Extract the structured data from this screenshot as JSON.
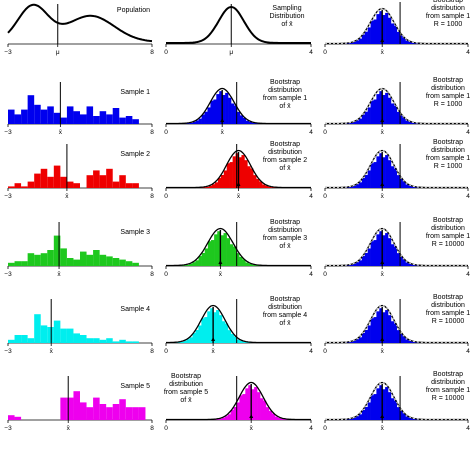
{
  "colors": {
    "sample1": "#0000ee",
    "sample2": "#ee0000",
    "sample3": "#1ec81e",
    "sample4": "#00eeee",
    "sample5": "#ee00ee",
    "bootstrap": "#0000ee",
    "curve": "#000000"
  },
  "chart_data": [
    {
      "type": "line",
      "panel": "population",
      "label": "Population",
      "x_ticks": [
        "−3",
        "μ",
        "8"
      ],
      "xlim": [
        -3,
        8
      ],
      "curve": "bimodal",
      "mean": 0.8
    },
    {
      "type": "line",
      "panel": "sampling",
      "label_lines": [
        "Sampling",
        "Distribution",
        "of x̄"
      ],
      "x_ticks": [
        "0",
        "μ",
        "4"
      ],
      "xlim": [
        0,
        4
      ],
      "mean": 1.8,
      "sd": 0.35
    },
    {
      "type": "area",
      "panel": "bootstrap-col3",
      "row": 0,
      "label_lines": [
        "Bootstrap",
        "distribution",
        "from sample 1",
        "R = 1000"
      ],
      "x_ticks": [
        "0",
        "x̄",
        "4"
      ],
      "xlim": [
        0,
        4
      ],
      "mean": 1.6,
      "sd": 0.33,
      "vline": 2.1
    },
    {
      "type": "bar",
      "panel": "sample",
      "row": 1,
      "label": "Sample 1",
      "color_key": "sample1",
      "x_ticks": [
        "−3",
        "x̄",
        "8"
      ],
      "xlim": [
        -3,
        8
      ],
      "bin_width": 0.5,
      "values": [
        0.45,
        0.3,
        0.45,
        0.9,
        0.6,
        0.45,
        0.55,
        0.35,
        0.2,
        0.55,
        0.4,
        0.3,
        0.55,
        0.25,
        0.4,
        0.3,
        0.5,
        0.2,
        0.25,
        0.15
      ],
      "vline": 1.0
    },
    {
      "type": "area",
      "panel": "bootstrap",
      "row": 1,
      "label_lines": [
        "Bootstrap",
        "distribution",
        "from sample 1",
        "of x̄"
      ],
      "color_key": "sample1",
      "x_ticks": [
        "0",
        "x̄",
        "4"
      ],
      "xlim": [
        0,
        4
      ],
      "mean": 1.55,
      "sd": 0.33,
      "vline": 1.95
    },
    {
      "type": "area",
      "panel": "bootstrap-col3",
      "row": 1,
      "label_lines": [
        "Bootstrap",
        "distribution",
        "from sample 1",
        "R = 1000"
      ],
      "x_ticks": [
        "0",
        "x̄",
        "4"
      ],
      "xlim": [
        0,
        4
      ],
      "mean": 1.6,
      "sd": 0.33,
      "vline": 2.1
    },
    {
      "type": "bar",
      "panel": "sample",
      "row": 2,
      "label": "Sample 2",
      "color_key": "sample2",
      "x_ticks": [
        "−3",
        "x̄",
        "8"
      ],
      "xlim": [
        -3,
        8
      ],
      "bin_width": 0.5,
      "values": [
        0.05,
        0.15,
        0.05,
        0.2,
        0.45,
        0.6,
        0.35,
        0.7,
        0.35,
        0.2,
        0.15,
        0,
        0.4,
        0.55,
        0.4,
        0.6,
        0.2,
        0.4,
        0.15,
        0.15
      ],
      "vline": 1.5
    },
    {
      "type": "area",
      "panel": "bootstrap",
      "row": 2,
      "label_lines": [
        "Bootstrap",
        "distribution",
        "from sample 2",
        "of x̄"
      ],
      "color_key": "sample2",
      "x_ticks": [
        "0",
        "x̄",
        "4"
      ],
      "xlim": [
        0,
        4
      ],
      "mean": 2.0,
      "sd": 0.33,
      "vline": 1.95
    },
    {
      "type": "area",
      "panel": "bootstrap-col3",
      "row": 2,
      "label_lines": [
        "Bootstrap",
        "distribution",
        "from sample 1",
        "R = 1000"
      ],
      "x_ticks": [
        "0",
        "x̄",
        "4"
      ],
      "xlim": [
        0,
        4
      ],
      "mean": 1.6,
      "sd": 0.33,
      "vline": 2.1
    },
    {
      "type": "bar",
      "panel": "sample",
      "row": 3,
      "label": "Sample 3",
      "color_key": "sample3",
      "x_ticks": [
        "−3",
        "x̄",
        "8"
      ],
      "xlim": [
        -3,
        8
      ],
      "bin_width": 0.5,
      "values": [
        0.1,
        0.15,
        0.15,
        0.4,
        0.35,
        0.4,
        0.5,
        0.95,
        0.55,
        0.25,
        0.2,
        0.45,
        0.35,
        0.5,
        0.35,
        0.3,
        0.25,
        0.2,
        0.15,
        0.1
      ],
      "vline": 0.9
    },
    {
      "type": "area",
      "panel": "bootstrap",
      "row": 3,
      "label_lines": [
        "Bootstrap",
        "distribution",
        "from sample 3",
        "of x̄"
      ],
      "color_key": "sample3",
      "x_ticks": [
        "0",
        "x̄",
        "4"
      ],
      "xlim": [
        0,
        4
      ],
      "mean": 1.5,
      "sd": 0.35,
      "vline": 1.95
    },
    {
      "type": "area",
      "panel": "bootstrap-col3",
      "row": 3,
      "label_lines": [
        "Bootstrap",
        "distribution",
        "from sample 1",
        "R = 10000"
      ],
      "x_ticks": [
        "0",
        "x̄",
        "4"
      ],
      "xlim": [
        0,
        4
      ],
      "mean": 1.6,
      "sd": 0.33,
      "vline": 2.1
    },
    {
      "type": "bar",
      "panel": "sample",
      "row": 4,
      "label": "Sample 4",
      "color_key": "sample4",
      "x_ticks": [
        "−3",
        "x̄",
        "8"
      ],
      "xlim": [
        -3,
        8
      ],
      "bin_width": 0.5,
      "values": [
        0.1,
        0.25,
        0.25,
        0.15,
        0.9,
        0.55,
        0.5,
        0.7,
        0.45,
        0.45,
        0.3,
        0.25,
        0.15,
        0.15,
        0.1,
        0.15,
        0.05,
        0.1,
        0.05,
        0.05
      ],
      "vline": 0.3
    },
    {
      "type": "area",
      "panel": "bootstrap",
      "row": 4,
      "label_lines": [
        "Bootstrap",
        "distribution",
        "from sample 4",
        "of x̄"
      ],
      "color_key": "sample4",
      "x_ticks": [
        "0",
        "x̄",
        "4"
      ],
      "xlim": [
        0,
        4
      ],
      "mean": 1.3,
      "sd": 0.33,
      "vline": 1.95
    },
    {
      "type": "area",
      "panel": "bootstrap-col3",
      "row": 4,
      "label_lines": [
        "Bootstrap",
        "distribution",
        "from sample 1",
        "R = 10000"
      ],
      "x_ticks": [
        "0",
        "x̄",
        "4"
      ],
      "xlim": [
        0,
        4
      ],
      "mean": 1.6,
      "sd": 0.33,
      "vline": 2.1
    },
    {
      "type": "bar",
      "panel": "sample",
      "row": 5,
      "label": "Sample 5",
      "color_key": "sample5",
      "x_ticks": [
        "−3",
        "x̄",
        "8"
      ],
      "xlim": [
        -3,
        8
      ],
      "bin_width": 0.5,
      "values": [
        0.15,
        0.1,
        0,
        0,
        0,
        0,
        0,
        0,
        0.7,
        0.7,
        0.9,
        0.55,
        0.4,
        0.7,
        0.5,
        0.4,
        0.5,
        0.65,
        0.4,
        0.4,
        0.4
      ],
      "vline": 1.6
    },
    {
      "type": "area",
      "panel": "bootstrap",
      "row": 5,
      "label_lines": [
        "Bootstrap",
        "distribution",
        "from sample 5",
        "of x̄"
      ],
      "color_key": "sample5",
      "x_ticks": [
        "0",
        "x̄",
        "4"
      ],
      "xlim": [
        0,
        4
      ],
      "mean": 2.35,
      "sd": 0.33,
      "vline": 1.95
    },
    {
      "type": "area",
      "panel": "bootstrap-col3",
      "row": 5,
      "label_lines": [
        "Bootstrap",
        "distribution",
        "from sample 1",
        "R = 10000"
      ],
      "x_ticks": [
        "0",
        "x̄",
        "4"
      ],
      "xlim": [
        0,
        4
      ],
      "mean": 1.6,
      "sd": 0.33,
      "vline": 2.1
    }
  ]
}
